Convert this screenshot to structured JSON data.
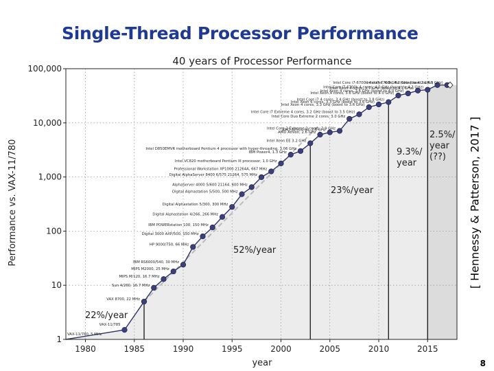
{
  "slide": {
    "title": "Single-Thread Processor Performance",
    "citation": "[ Hennessy & Patterson, 2017 ]",
    "page_number": "8"
  },
  "colors": {
    "title": "#1f3a93",
    "marker": "#3b3f7a",
    "line": "#2d3468",
    "band_light": "#ececec",
    "band_dark": "#dcdcdc",
    "grid": "#999999"
  },
  "chart_data": {
    "type": "line",
    "title": "40 years of Processor Performance",
    "xlabel": "year",
    "ylabel": "Performance vs. VAX-11/780",
    "xscale": "linear",
    "yscale": "log",
    "xlim": [
      1978,
      2018
    ],
    "ylim": [
      1,
      100000
    ],
    "x_ticks": [
      1980,
      1985,
      1990,
      1995,
      2000,
      2005,
      2010,
      2015
    ],
    "y_ticks": [
      {
        "value": 1,
        "label": "1"
      },
      {
        "value": 10,
        "label": "10"
      },
      {
        "value": 100,
        "label": "100"
      },
      {
        "value": 1000,
        "label": "1,000"
      },
      {
        "value": 10000,
        "label": "10,000"
      },
      {
        "value": 100000,
        "label": "100,000"
      }
    ],
    "grid": true,
    "series": [
      {
        "name": "single-thread performance",
        "x": [
          1978,
          1984,
          1986,
          1987,
          1988,
          1989,
          1990,
          1991,
          1992,
          1993,
          1994,
          1995,
          1996,
          1997,
          1998,
          1999,
          2000,
          2001,
          2002,
          2003,
          2004,
          2005,
          2006,
          2007,
          2008,
          2009,
          2010,
          2011,
          2012,
          2013,
          2014,
          2015,
          2016,
          2017
        ],
        "y": [
          1,
          1.5,
          5,
          9,
          13,
          18,
          24,
          51,
          80,
          117,
          183,
          280,
          481,
          649,
          993,
          1267,
          1779,
          2584,
          3016,
          4195,
          6043,
          6681,
          7108,
          11865,
          14387,
          19484,
          21871,
          24129,
          31999,
          34967,
          39419,
          40967,
          49935,
          49870
        ]
      }
    ],
    "eras": [
      {
        "label": "22%/year",
        "start": 1978,
        "end": 1986
      },
      {
        "label": "52%/year",
        "start": 1986,
        "end": 2003
      },
      {
        "label": "23%/year",
        "start": 2003,
        "end": 2011
      },
      {
        "label": "9.3%/ year",
        "start": 2011,
        "end": 2015
      },
      {
        "label": "2.5%/ year (??)",
        "start": 2015,
        "end": 2018
      }
    ],
    "annotations": [
      {
        "x": 1978,
        "y": 1,
        "text": "VAX-11/780, 5 MHz"
      },
      {
        "x": 1984,
        "y": 1.5,
        "text": "VAX-11/785"
      },
      {
        "x": 1986,
        "y": 5,
        "text": "VAX 8700, 22 MHz"
      },
      {
        "x": 1987,
        "y": 9,
        "text": "Sun 4/260, 16.7 MHz"
      },
      {
        "x": 1988,
        "y": 13,
        "text": "MIPS M/120, 16.7 MHz"
      },
      {
        "x": 1989,
        "y": 18,
        "text": "MIPS M2000, 25 MHz"
      },
      {
        "x": 1990,
        "y": 24,
        "text": "IBM RS6000/540, 30 MHz"
      },
      {
        "x": 1991,
        "y": 51,
        "text": "HP 9000/750, 66 MHz"
      },
      {
        "x": 1992,
        "y": 80,
        "text": "Digital 3000 AXP/500, 150 MHz"
      },
      {
        "x": 1993,
        "y": 117,
        "text": "IBM POWERstation 100, 150 MHz"
      },
      {
        "x": 1994,
        "y": 183,
        "text": "Digital Alphastation 4/266, 266 MHz"
      },
      {
        "x": 1995,
        "y": 280,
        "text": "Digital Alphastation 5/300, 300 MHz"
      },
      {
        "x": 1996,
        "y": 481,
        "text": "Digital Alphastation 5/500, 500 MHz"
      },
      {
        "x": 1997,
        "y": 649,
        "text": "AlphaServer 4000 5/600 21164, 600 MHz"
      },
      {
        "x": 1998,
        "y": 993,
        "text": "Digital AlphaServer 8400 6/575 21264, 575 MHz"
      },
      {
        "x": 1999,
        "y": 1267,
        "text": "Professional Workstation XP1000 21264A, 667 MHz"
      },
      {
        "x": 2000,
        "y": 1779,
        "text": "Intel VC820 motherboard Pentium III processor, 1.0 GHz"
      },
      {
        "x": 2001,
        "y": 2584,
        "text": "IBM Power4, 1.3 GHz"
      },
      {
        "x": 2002,
        "y": 3016,
        "text": "Intel D850EMVR motherboard Pentium 4 processor with hyper-threading, 3.06 GHz"
      },
      {
        "x": 2003,
        "y": 4195,
        "text": "Intel Xeon EE 3.2 GHz"
      },
      {
        "x": 2004,
        "y": 6043,
        "text": "AMD Athlon, 2.6 GHz"
      },
      {
        "x": 2005,
        "y": 6681,
        "text": "AMD Athlon 64, 2.8 GHz"
      },
      {
        "x": 2006,
        "y": 7108,
        "text": "Intel Core 2 Extreme 2 cores, 2.9 GHz"
      },
      {
        "x": 2007,
        "y": 11865,
        "text": "Intel Core Duo Extreme 2 cores, 3.0 GHz"
      },
      {
        "x": 2008,
        "y": 14387,
        "text": "Intel Core i7 Extreme 4 cores, 3.2 GHz (boost to 3.5 GHz)"
      },
      {
        "x": 2009,
        "y": 19484,
        "text": "Intel Xeon 4 cores, 3.3 GHz (boost to 3.6 GHz)"
      },
      {
        "x": 2010,
        "y": 21871,
        "text": "Intel Xeon 6 cores, 3.3 GHz (boost to 3.6 GHz)"
      },
      {
        "x": 2011,
        "y": 24129,
        "text": "Intel Core i7 4 cores, 3.4 GHz (boost to 3.8 GHz)"
      },
      {
        "x": 2012,
        "y": 31999,
        "text": "Intel Xeon 4 cores, 3.6 GHz (boost to 4.0 GHz)"
      },
      {
        "x": 2013,
        "y": 34967,
        "text": "Intel Xeon 4 cores, 3.6 GHz (boost to 4.0 GHz)"
      },
      {
        "x": 2014,
        "y": 39419,
        "text": "Intel Xeon 4 cores, 3.7 GHz (boost to 4.1 GHz)"
      },
      {
        "x": 2015,
        "y": 40967,
        "text": "Intel Core i7-6700k 4 cores, 4.0 GHz (boost to 4.2 GHz)"
      },
      {
        "x": 2016,
        "y": 49935,
        "text": "Intel Core i7-6700k 4 cores, 4.0 GHz (boost to 4.2 GHz)"
      },
      {
        "x": 2017,
        "y": 49870,
        "text": "Intel i7-7700k, 4.2 GHz (boost to 4.5 GHz)"
      }
    ]
  }
}
